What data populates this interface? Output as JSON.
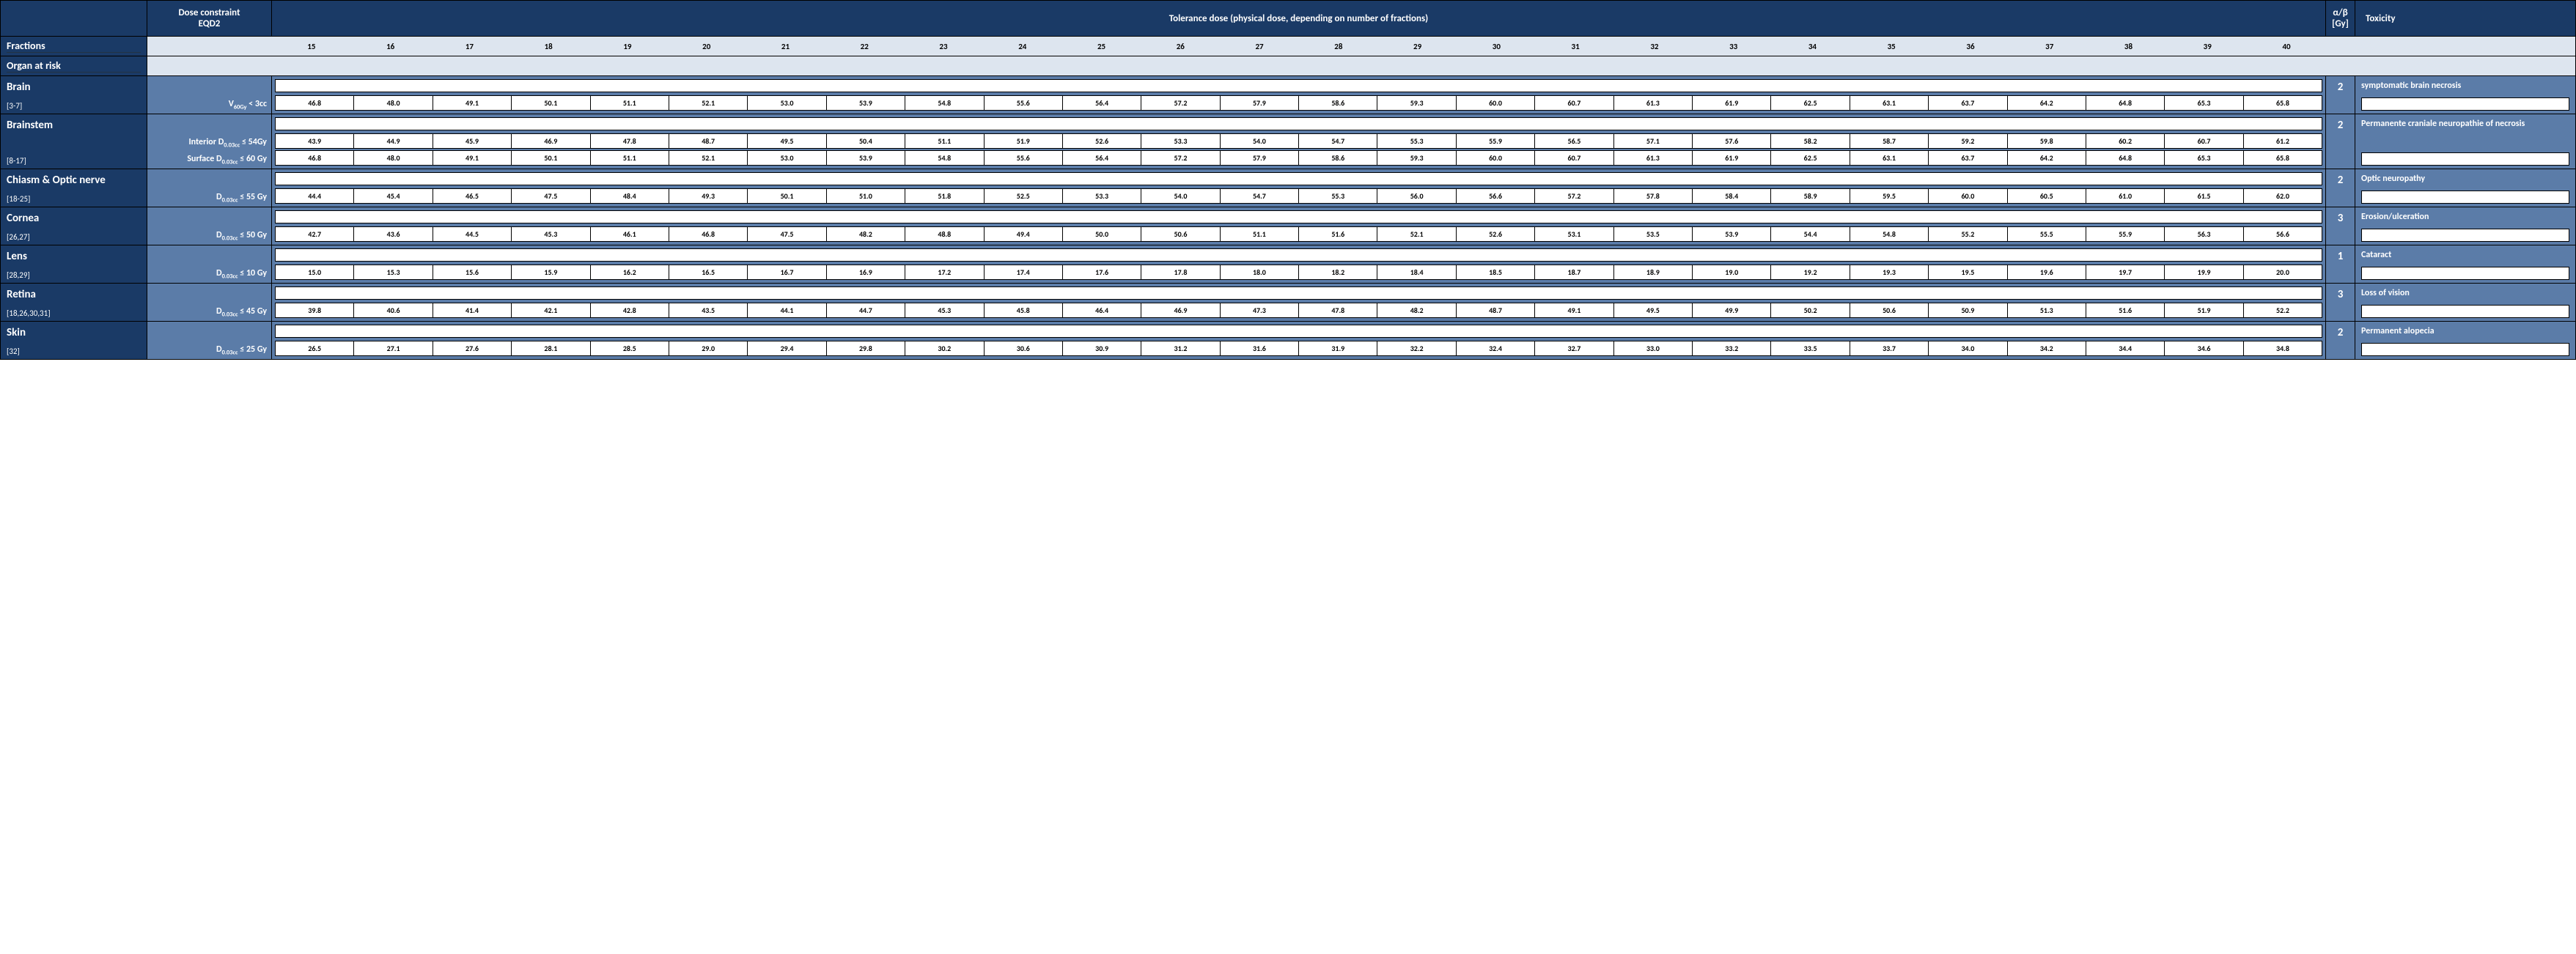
{
  "headers": {
    "dose_constraint": "Dose constraint\nEQD2",
    "tolerance": "Tolerance dose (physical dose, depending on number of fractions)",
    "ab": "α/β\n[Gy]",
    "toxicity": "Toxicity"
  },
  "sub_headers": {
    "fractions": "Fractions",
    "organ": "Organ at risk"
  },
  "fractions": [
    "15",
    "16",
    "17",
    "18",
    "19",
    "20",
    "21",
    "22",
    "23",
    "24",
    "25",
    "26",
    "27",
    "28",
    "29",
    "30",
    "31",
    "32",
    "33",
    "34",
    "35",
    "36",
    "37",
    "38",
    "39",
    "40"
  ],
  "colors": {
    "header_bg": "#1a3a66",
    "subheader_bg": "#dde5ef",
    "row_bg": "#5b7ca8",
    "cell_bg": "#ffffff"
  },
  "organs": [
    {
      "name": "Brain",
      "ref": "[3-7]",
      "constraints": [
        "V|60Gy| < 3cc"
      ],
      "rows": [
        [
          "46.8",
          "48.0",
          "49.1",
          "50.1",
          "51.1",
          "52.1",
          "53.0",
          "53.9",
          "54.8",
          "55.6",
          "56.4",
          "57.2",
          "57.9",
          "58.6",
          "59.3",
          "60.0",
          "60.7",
          "61.3",
          "61.9",
          "62.5",
          "63.1",
          "63.7",
          "64.2",
          "64.8",
          "65.3",
          "65.8"
        ]
      ],
      "ab": "2",
      "toxicity": "symptomatic brain necrosis"
    },
    {
      "name": "Brainstem",
      "ref": "[8-17]",
      "constraints": [
        "Interior D|0.03cc| ≤ 54Gy",
        "Surface D|0.03cc| ≤ 60 Gy"
      ],
      "rows": [
        [
          "43.9",
          "44.9",
          "45.9",
          "46.9",
          "47.8",
          "48.7",
          "49.5",
          "50.4",
          "51.1",
          "51.9",
          "52.6",
          "53.3",
          "54.0",
          "54.7",
          "55.3",
          "55.9",
          "56.5",
          "57.1",
          "57.6",
          "58.2",
          "58.7",
          "59.2",
          "59.8",
          "60.2",
          "60.7",
          "61.2"
        ],
        [
          "46.8",
          "48.0",
          "49.1",
          "50.1",
          "51.1",
          "52.1",
          "53.0",
          "53.9",
          "54.8",
          "55.6",
          "56.4",
          "57.2",
          "57.9",
          "58.6",
          "59.3",
          "60.0",
          "60.7",
          "61.3",
          "61.9",
          "62.5",
          "63.1",
          "63.7",
          "64.2",
          "64.8",
          "65.3",
          "65.8"
        ]
      ],
      "ab": "2",
      "toxicity": "Permanente craniale neuropathie of necrosis"
    },
    {
      "name": "Chiasm & Optic nerve",
      "ref": "[18-25]",
      "constraints": [
        "D|0.03cc| ≤ 55 Gy"
      ],
      "rows": [
        [
          "44.4",
          "45.4",
          "46.5",
          "47.5",
          "48.4",
          "49.3",
          "50.1",
          "51.0",
          "51.8",
          "52.5",
          "53.3",
          "54.0",
          "54.7",
          "55.3",
          "56.0",
          "56.6",
          "57.2",
          "57.8",
          "58.4",
          "58.9",
          "59.5",
          "60.0",
          "60.5",
          "61.0",
          "61.5",
          "62.0"
        ]
      ],
      "ab": "2",
      "toxicity": "Optic neuropathy"
    },
    {
      "name": "Cornea",
      "ref": "[26,27]",
      "constraints": [
        "D|0.03cc| ≤ 50 Gy"
      ],
      "rows": [
        [
          "42.7",
          "43.6",
          "44.5",
          "45.3",
          "46.1",
          "46.8",
          "47.5",
          "48.2",
          "48.8",
          "49.4",
          "50.0",
          "50.6",
          "51.1",
          "51.6",
          "52.1",
          "52.6",
          "53.1",
          "53.5",
          "53.9",
          "54.4",
          "54.8",
          "55.2",
          "55.5",
          "55.9",
          "56.3",
          "56.6"
        ]
      ],
      "ab": "3",
      "toxicity": "Erosion/ulceration"
    },
    {
      "name": "Lens",
      "ref": "[28,29]",
      "constraints": [
        "D|0.03cc| ≤ 10 Gy"
      ],
      "rows": [
        [
          "15.0",
          "15.3",
          "15.6",
          "15.9",
          "16.2",
          "16.5",
          "16.7",
          "16.9",
          "17.2",
          "17.4",
          "17.6",
          "17.8",
          "18.0",
          "18.2",
          "18.4",
          "18.5",
          "18.7",
          "18.9",
          "19.0",
          "19.2",
          "19.3",
          "19.5",
          "19.6",
          "19.7",
          "19.9",
          "20.0"
        ]
      ],
      "ab": "1",
      "toxicity": "Cataract"
    },
    {
      "name": "Retina",
      "ref": "[18,26,30,31]",
      "constraints": [
        "D|0.03cc| ≤ 45 Gy"
      ],
      "rows": [
        [
          "39.8",
          "40.6",
          "41.4",
          "42.1",
          "42.8",
          "43.5",
          "44.1",
          "44.7",
          "45.3",
          "45.8",
          "46.4",
          "46.9",
          "47.3",
          "47.8",
          "48.2",
          "48.7",
          "49.1",
          "49.5",
          "49.9",
          "50.2",
          "50.6",
          "50.9",
          "51.3",
          "51.6",
          "51.9",
          "52.2"
        ]
      ],
      "ab": "3",
      "toxicity": "Loss of vision"
    },
    {
      "name": "Skin",
      "ref": "[32]",
      "constraints": [
        "D|0.03cc| ≤ 25 Gy"
      ],
      "rows": [
        [
          "26.5",
          "27.1",
          "27.6",
          "28.1",
          "28.5",
          "29.0",
          "29.4",
          "29.8",
          "30.2",
          "30.6",
          "30.9",
          "31.2",
          "31.6",
          "31.9",
          "32.2",
          "32.4",
          "32.7",
          "33.0",
          "33.2",
          "33.5",
          "33.7",
          "34.0",
          "34.2",
          "34.4",
          "34.6",
          "34.8"
        ]
      ],
      "ab": "2",
      "toxicity": "Permanent alopecia"
    }
  ]
}
